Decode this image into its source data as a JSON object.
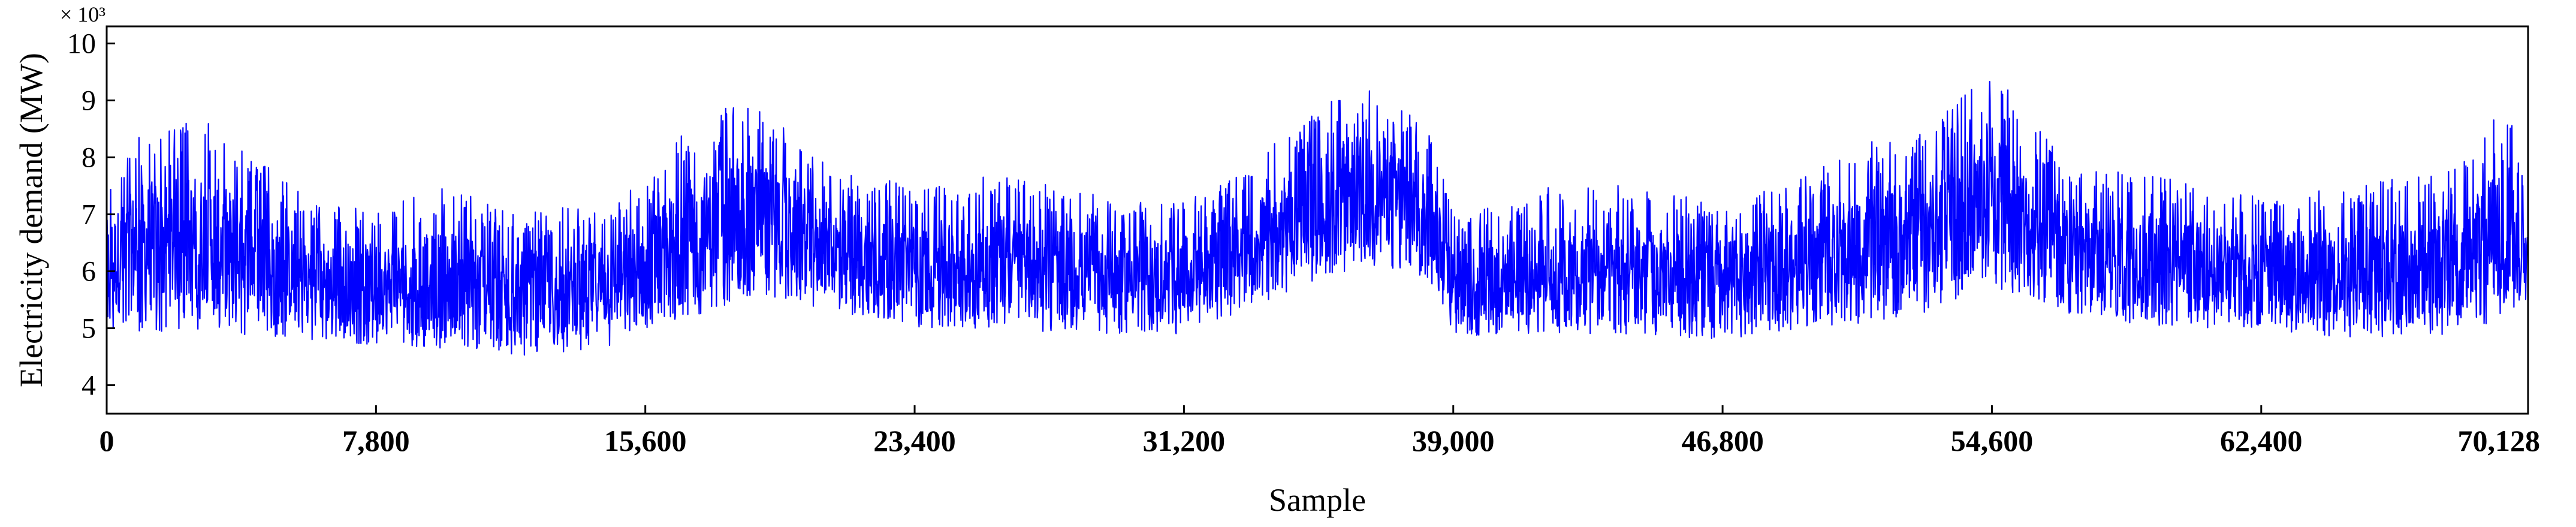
{
  "chart_data": {
    "type": "line",
    "title": "",
    "xlabel": "Sample",
    "ylabel": "Electricity demand (MW)",
    "y_multiplier": "× 10³",
    "xlim": [
      0,
      70128
    ],
    "ylim": [
      3.5,
      10.3
    ],
    "x_ticks": [
      0,
      7800,
      15600,
      23400,
      31200,
      39000,
      46800,
      54600,
      62400,
      70128
    ],
    "x_tick_labels": [
      "0",
      "7,800",
      "15,600",
      "23,400",
      "31,200",
      "39,000",
      "46,800",
      "54,600",
      "62,400",
      "70,128"
    ],
    "y_ticks": [
      4,
      5,
      6,
      7,
      8,
      9,
      10
    ],
    "y_tick_labels": [
      "4",
      "5",
      "6",
      "7",
      "8",
      "9",
      "10"
    ],
    "grid": false,
    "legend": "none",
    "series_color": "#0000ff",
    "series": [
      {
        "name": "",
        "envelope": {
          "x": [
            0,
            1000,
            3000,
            3500,
            6000,
            7800,
            10000,
            12000,
            14000,
            15600,
            16600,
            17500,
            18500,
            19500,
            21000,
            23400,
            26000,
            28000,
            31200,
            33000,
            34500,
            36000,
            37000,
            38500,
            39000,
            41000,
            43000,
            46800,
            49000,
            51000,
            53000,
            54600,
            55500,
            57000,
            60000,
            62400,
            65000,
            67000,
            68500,
            69500,
            70128
          ],
          "min": [
            4.9,
            4.9,
            5.0,
            4.9,
            4.8,
            4.7,
            4.6,
            4.5,
            4.6,
            4.8,
            5.0,
            5.3,
            5.5,
            5.5,
            5.3,
            5.0,
            5.0,
            4.9,
            4.9,
            5.3,
            5.7,
            6.0,
            6.1,
            5.7,
            4.8,
            4.9,
            4.9,
            4.8,
            5.0,
            5.1,
            5.3,
            5.7,
            5.5,
            5.2,
            5.0,
            5.0,
            4.8,
            4.8,
            5.0,
            5.0,
            5.3
          ],
          "max": [
            7.6,
            8.5,
            8.7,
            8.4,
            7.2,
            7.1,
            7.5,
            7.0,
            7.2,
            7.6,
            8.4,
            8.7,
            9.1,
            8.6,
            7.8,
            7.5,
            7.7,
            7.4,
            7.2,
            7.8,
            8.6,
            9.2,
            9.3,
            8.3,
            7.0,
            7.4,
            7.6,
            7.2,
            7.6,
            8.3,
            8.6,
            9.8,
            8.7,
            8.0,
            7.6,
            7.3,
            7.5,
            7.7,
            8.0,
            9.2,
            7.4
          ]
        }
      }
    ]
  }
}
